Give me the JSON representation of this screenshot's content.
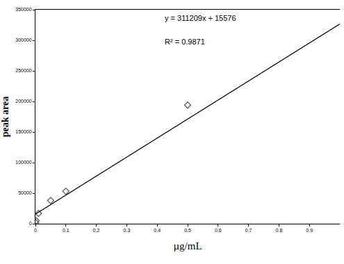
{
  "chart_data": {
    "type": "scatter",
    "xlabel": "µg/mL",
    "ylabel": "peak area",
    "annotations": [
      "y = 311209x + 15576",
      "R² = 0.9871"
    ],
    "series": [
      {
        "type": "scatter",
        "marker": "diamond-open",
        "color": "#555555",
        "x": [
          0.001,
          0.002,
          0.01,
          0.05,
          0.1,
          0.5
        ],
        "values": [
          2000,
          5000,
          17000,
          38000,
          53000,
          194000
        ]
      },
      {
        "type": "line",
        "line_style": "solid",
        "color": "#000000",
        "x": [
          0,
          1
        ],
        "values": [
          15576,
          326785
        ]
      }
    ],
    "xlim": [
      0,
      1
    ],
    "xticks": [
      0,
      0.1,
      0.2,
      0.3,
      0.4,
      0.5,
      0.6,
      0.7,
      0.8,
      0.9
    ],
    "ylim": [
      0,
      350000
    ],
    "yticks": [
      0,
      50000,
      100000,
      150000,
      200000,
      250000,
      300000,
      350000
    ],
    "grid": false
  }
}
